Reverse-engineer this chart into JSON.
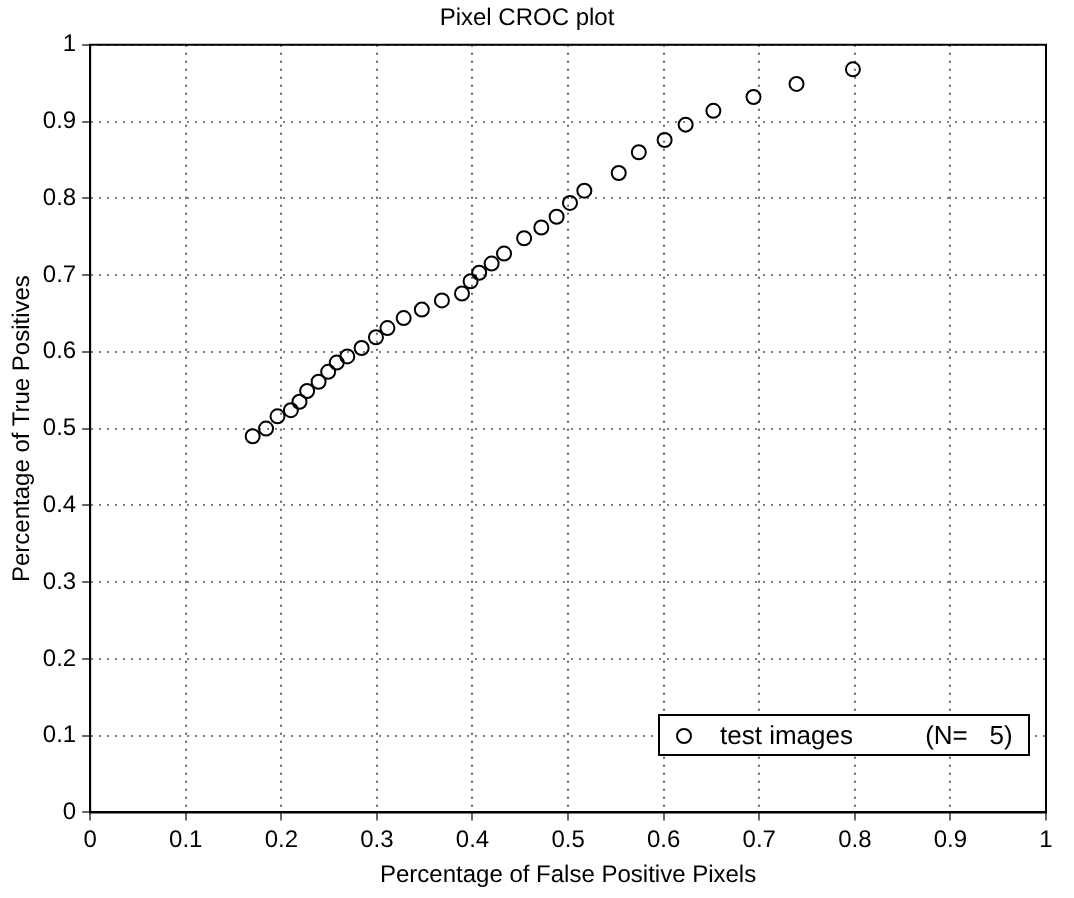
{
  "chart_data": {
    "type": "scatter",
    "title": "Pixel CROC plot",
    "xlabel": "Percentage of False Positive Pixels",
    "ylabel": "Percentage of True Positives",
    "xlim": [
      0,
      1
    ],
    "ylim": [
      0,
      1
    ],
    "xticks": [
      0,
      0.1,
      0.2,
      0.3,
      0.4,
      0.5,
      0.6,
      0.7,
      0.8,
      0.9,
      1
    ],
    "yticks": [
      0,
      0.1,
      0.2,
      0.3,
      0.4,
      0.5,
      0.6,
      0.7,
      0.8,
      0.9,
      1
    ],
    "grid": true,
    "legend": "bottom right",
    "marker": "circle",
    "series": [
      {
        "name": "test images          (N=   5)",
        "color": "#000000",
        "x": [
          0.17,
          0.184,
          0.196,
          0.21,
          0.219,
          0.227,
          0.239,
          0.249,
          0.258,
          0.269,
          0.284,
          0.299,
          0.311,
          0.328,
          0.347,
          0.368,
          0.389,
          0.398,
          0.407,
          0.42,
          0.433,
          0.454,
          0.472,
          0.488,
          0.502,
          0.517,
          0.553,
          0.574,
          0.601,
          0.623,
          0.652,
          0.694,
          0.739,
          0.798
        ],
        "values": [
          0.49,
          0.5,
          0.516,
          0.524,
          0.535,
          0.549,
          0.561,
          0.574,
          0.586,
          0.594,
          0.605,
          0.619,
          0.631,
          0.644,
          0.655,
          0.667,
          0.676,
          0.692,
          0.703,
          0.715,
          0.728,
          0.748,
          0.762,
          0.776,
          0.794,
          0.81,
          0.833,
          0.86,
          0.876,
          0.896,
          0.914,
          0.932,
          0.949,
          0.968
        ]
      }
    ]
  }
}
